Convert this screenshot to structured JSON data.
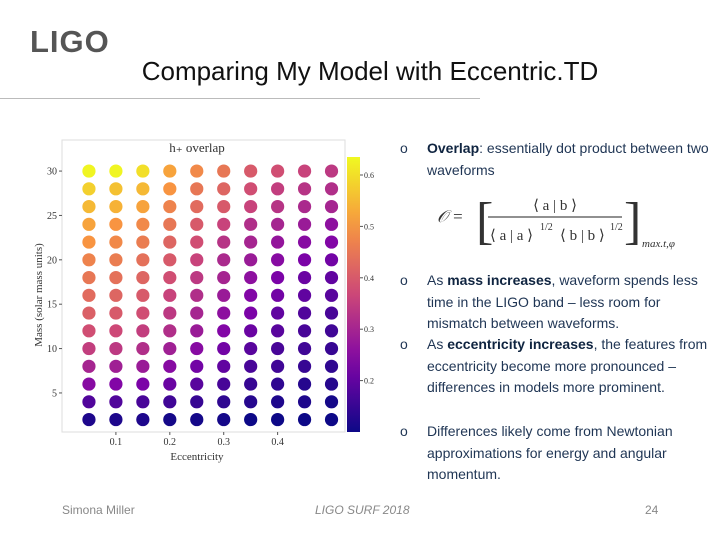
{
  "logo": "LIGO",
  "title": "Comparing My Model with Eccentric.TD",
  "chart_data": {
    "type": "heatmap",
    "title": "h₊ overlap",
    "x_label": "Eccentricity",
    "y_label": "Mass (solar mass units)",
    "colormap": "plasma",
    "x": [
      0.05,
      0.1,
      0.15,
      0.2,
      0.25,
      0.3,
      0.35,
      0.4,
      0.45,
      0.5
    ],
    "y": [
      30,
      28,
      26,
      24,
      22,
      20,
      18,
      16,
      14,
      12,
      10,
      8,
      6,
      4,
      2
    ],
    "values": [
      [
        0.63,
        0.63,
        0.6,
        0.52,
        0.48,
        0.45,
        0.4,
        0.38,
        0.36,
        0.34
      ],
      [
        0.58,
        0.56,
        0.55,
        0.5,
        0.45,
        0.42,
        0.38,
        0.35,
        0.33,
        0.32
      ],
      [
        0.55,
        0.54,
        0.52,
        0.47,
        0.43,
        0.4,
        0.36,
        0.33,
        0.31,
        0.3
      ],
      [
        0.52,
        0.5,
        0.48,
        0.45,
        0.4,
        0.36,
        0.32,
        0.3,
        0.28,
        0.26
      ],
      [
        0.5,
        0.48,
        0.46,
        0.42,
        0.38,
        0.33,
        0.3,
        0.27,
        0.25,
        0.24
      ],
      [
        0.47,
        0.46,
        0.44,
        0.4,
        0.36,
        0.31,
        0.28,
        0.25,
        0.23,
        0.22
      ],
      [
        0.45,
        0.44,
        0.42,
        0.38,
        0.34,
        0.3,
        0.26,
        0.23,
        0.21,
        0.2
      ],
      [
        0.43,
        0.42,
        0.4,
        0.36,
        0.32,
        0.28,
        0.24,
        0.22,
        0.2,
        0.19
      ],
      [
        0.41,
        0.4,
        0.38,
        0.34,
        0.3,
        0.26,
        0.23,
        0.2,
        0.18,
        0.17
      ],
      [
        0.38,
        0.37,
        0.35,
        0.32,
        0.28,
        0.24,
        0.21,
        0.19,
        0.17,
        0.16
      ],
      [
        0.35,
        0.34,
        0.32,
        0.29,
        0.25,
        0.22,
        0.19,
        0.17,
        0.16,
        0.15
      ],
      [
        0.3,
        0.29,
        0.28,
        0.25,
        0.22,
        0.2,
        0.17,
        0.16,
        0.15,
        0.14
      ],
      [
        0.25,
        0.24,
        0.23,
        0.21,
        0.19,
        0.17,
        0.15,
        0.14,
        0.13,
        0.13
      ],
      [
        0.18,
        0.18,
        0.17,
        0.16,
        0.15,
        0.14,
        0.13,
        0.12,
        0.12,
        0.11
      ],
      [
        0.12,
        0.12,
        0.12,
        0.11,
        0.11,
        0.11,
        0.1,
        0.1,
        0.1,
        0.1
      ]
    ],
    "xlim": [
      0,
      0.525
    ],
    "ylim": [
      0.6,
      33.5
    ],
    "xticks": [
      0.1,
      0.2,
      0.3,
      0.4
    ],
    "yticks": [
      5,
      10,
      15,
      20,
      25,
      30
    ],
    "clim": [
      0.1,
      0.635
    ],
    "cticks": [
      0.2,
      0.3,
      0.4,
      0.5,
      0.6
    ]
  },
  "bullets": [
    {
      "marker": "o",
      "parts": [
        {
          "text": "Overlap",
          "bold": true
        },
        {
          "text": ": essentially dot product between two waveforms",
          "bold": false
        }
      ]
    },
    {
      "marker": "o",
      "parts": [
        {
          "text": "As ",
          "bold": false
        },
        {
          "text": "mass increases",
          "bold": true
        },
        {
          "text": ", waveform spends less time in the LIGO band – less room for mismatch between waveforms.",
          "bold": false
        }
      ]
    },
    {
      "marker": "o",
      "parts": [
        {
          "text": "As ",
          "bold": false
        },
        {
          "text": "eccentricity increases",
          "bold": true
        },
        {
          "text": ", the features from eccentricity become more pronounced – differences in models more prominent.",
          "bold": false
        }
      ]
    },
    {
      "marker": "o",
      "parts": [
        {
          "text": "Differences likely come from Newtonian approximations for energy and angular momentum.",
          "bold": false
        }
      ]
    }
  ],
  "equation": {
    "lhs": "𝒪 =",
    "numerator": "⟨ a | b ⟩",
    "denominator": [
      "⟨ a | a ⟩",
      "1/2",
      "⟨ b | b ⟩",
      "1/2"
    ],
    "subscript": "max.t,φ"
  },
  "footer": {
    "author": "Simona Miller",
    "event": "LIGO SURF 2018",
    "page": "24"
  }
}
